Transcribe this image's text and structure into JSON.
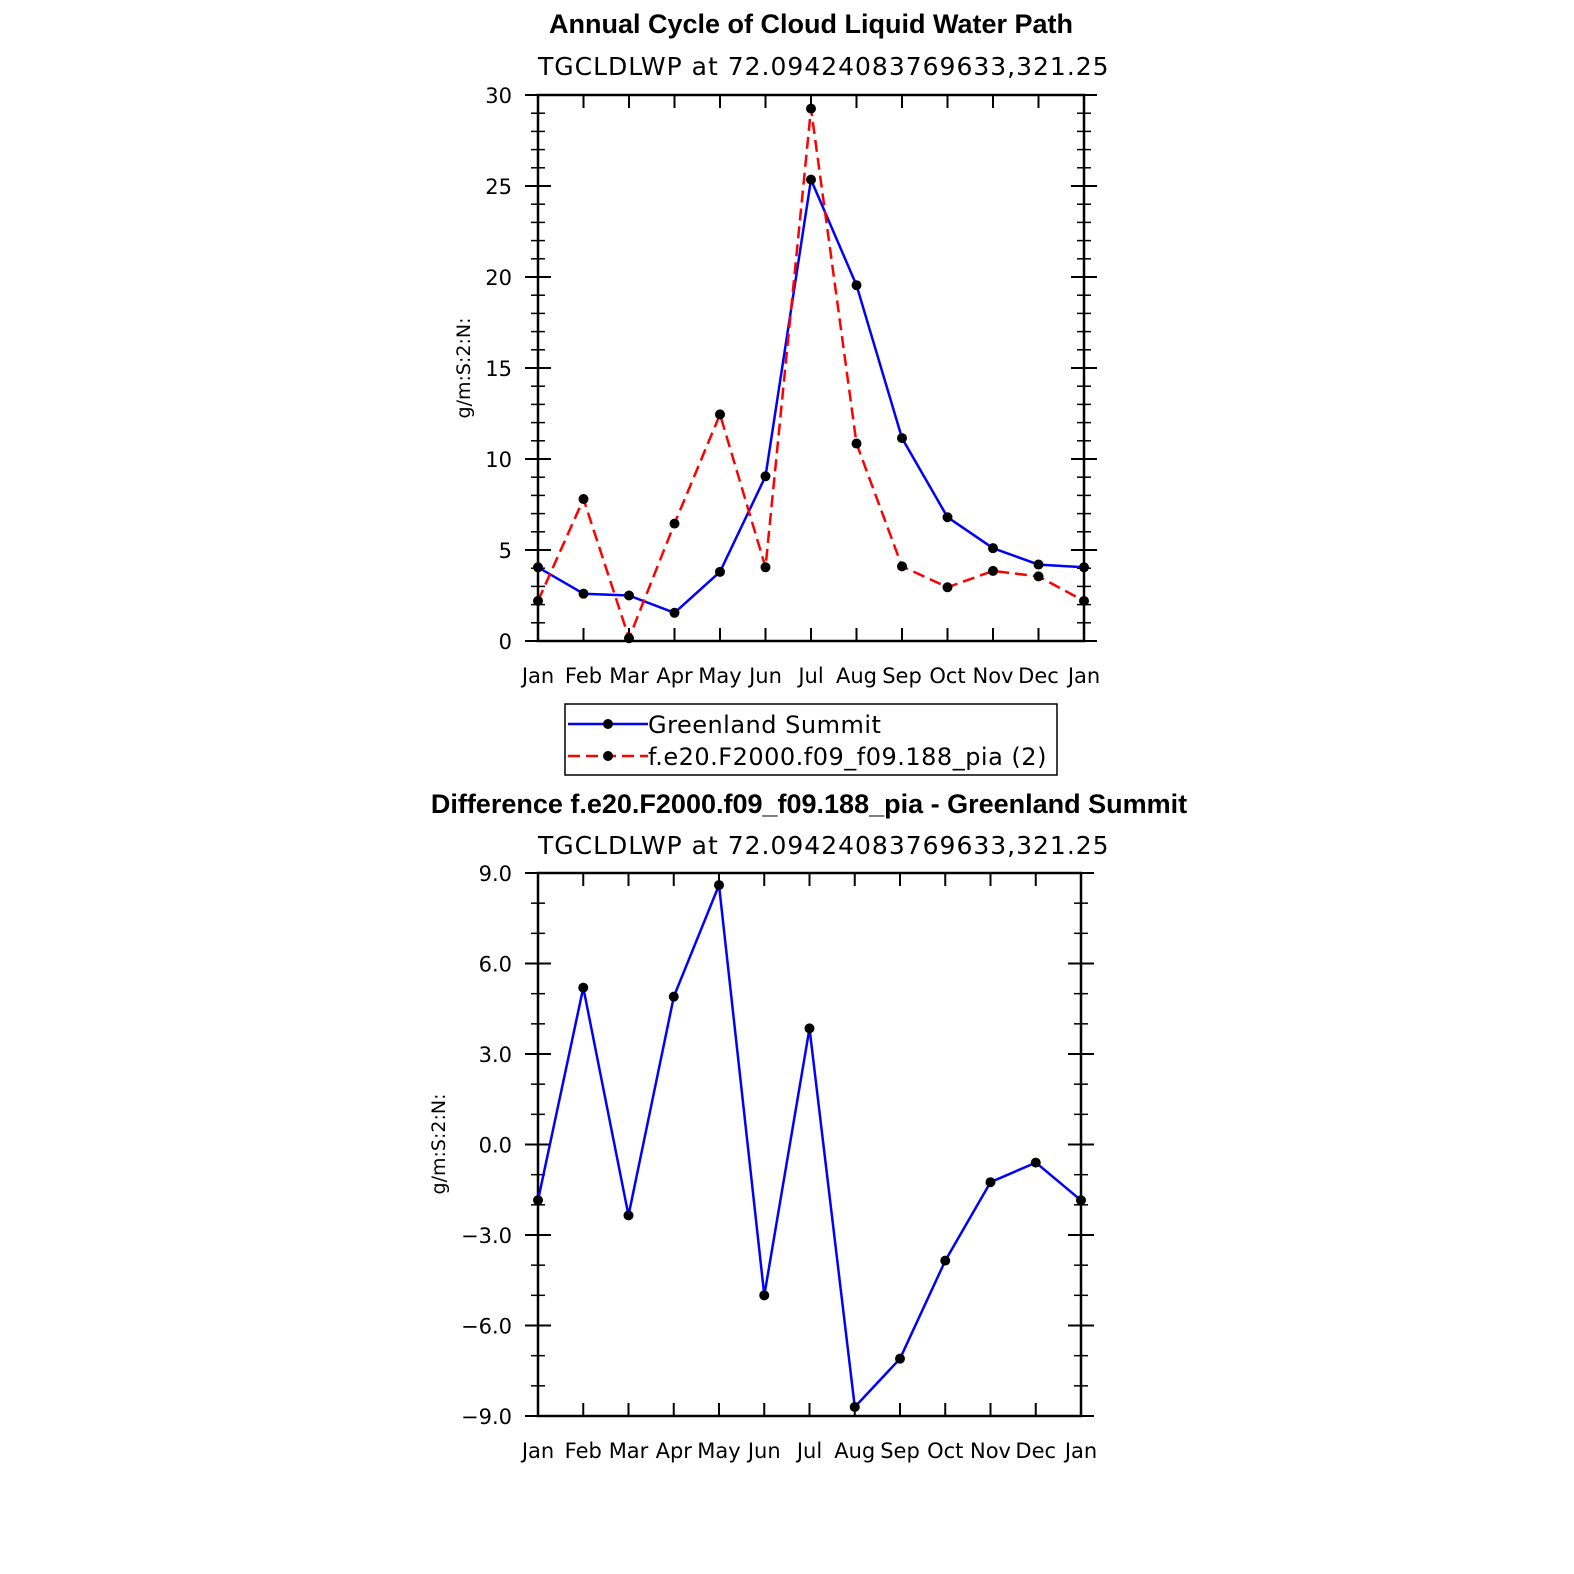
{
  "chart_data": [
    {
      "type": "line",
      "title": "Annual Cycle of Cloud Liquid Water Path",
      "subtitle": "TGCLDLWP  at  72.09424083769633,321.25",
      "ylabel": "g/m:S:2:N:",
      "xlabel": "",
      "categories": [
        "Jan",
        "Feb",
        "Mar",
        "Apr",
        "May",
        "Jun",
        "Jul",
        "Aug",
        "Sep",
        "Oct",
        "Nov",
        "Dec",
        "Jan"
      ],
      "ylim": [
        0,
        30
      ],
      "yticks": [
        "0",
        "5",
        "10",
        "15",
        "20",
        "25",
        "30"
      ],
      "ytick_values": [
        0,
        5,
        10,
        15,
        20,
        25,
        30
      ],
      "series": [
        {
          "name": "Greenland Summit",
          "color": "#0000ff",
          "dash": "solid",
          "values": [
            4.05,
            2.6,
            2.5,
            1.55,
            3.8,
            9.05,
            25.35,
            19.55,
            11.15,
            6.8,
            5.1,
            4.2,
            4.05
          ]
        },
        {
          "name": "f.e20.F2000.f09_f09.188_pia (2)",
          "color": "#ff0000",
          "dash": "dashed",
          "values": [
            2.2,
            7.8,
            0.15,
            6.45,
            12.45,
            4.05,
            29.25,
            10.85,
            4.1,
            2.95,
            3.85,
            3.55,
            2.2
          ]
        }
      ],
      "grid": false,
      "legend": "below"
    },
    {
      "type": "line",
      "title": "Difference f.e20.F2000.f09_f09.188_pia - Greenland Summit",
      "subtitle": "TGCLDLWP  at  72.09424083769633,321.25",
      "ylabel": "g/m:S:2:N:",
      "xlabel": "",
      "categories": [
        "Jan",
        "Feb",
        "Mar",
        "Apr",
        "May",
        "Jun",
        "Jul",
        "Aug",
        "Sep",
        "Oct",
        "Nov",
        "Dec",
        "Jan"
      ],
      "ylim": [
        -9,
        9
      ],
      "yticks": [
        "−9.0",
        "−6.0",
        "−3.0",
        "0.0",
        "3.0",
        "6.0",
        "9.0"
      ],
      "ytick_values": [
        -9,
        -6,
        -3,
        0,
        3,
        6,
        9
      ],
      "series": [
        {
          "color": "#0000ff",
          "dash": "solid",
          "values": [
            -1.85,
            5.2,
            -2.35,
            4.9,
            8.6,
            -5.0,
            3.85,
            -8.7,
            -7.1,
            -3.85,
            -1.25,
            -0.6,
            -1.85
          ]
        }
      ],
      "grid": false,
      "legend": "none"
    }
  ]
}
